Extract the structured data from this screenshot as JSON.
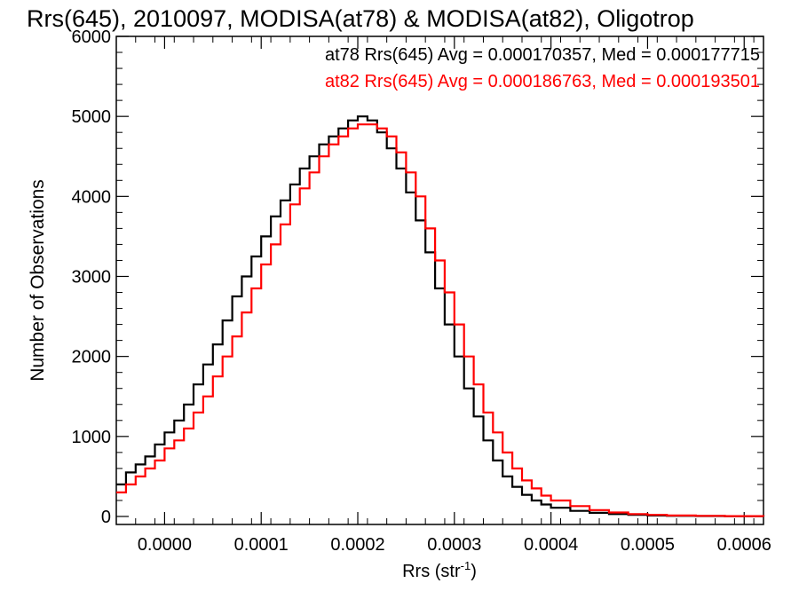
{
  "chart_data": {
    "type": "line",
    "title": "Rrs(645), 2010097, MODISA(at78) & MODISA(at82), Oligotrop",
    "xlabel": "Rrs (str",
    "xlabel_exponent": "-1",
    "xlabel_close": ")",
    "ylabel": "Number of Observations",
    "xlim": [
      -5e-05,
      0.00062
    ],
    "ylim": [
      -100,
      6000
    ],
    "x_tick_labels": [
      "0.0000",
      "0.0001",
      "0.0002",
      "0.0003",
      "0.0004",
      "0.0005",
      "0.0006"
    ],
    "x_tick_values": [
      0,
      0.0001,
      0.0002,
      0.0003,
      0.0004,
      0.0005,
      0.0006
    ],
    "y_tick_labels": [
      "0",
      "1000",
      "2000",
      "3000",
      "4000",
      "5000",
      "6000"
    ],
    "y_tick_values": [
      0,
      1000,
      2000,
      3000,
      4000,
      5000,
      6000
    ],
    "grid": false,
    "legend_position": "top-right",
    "series": [
      {
        "name": "at78 Rrs(645) Avg = 0.000170357, Med = 0.000177715",
        "color": "#000000",
        "x": [
          -5e-05,
          -4e-05,
          -3e-05,
          -2e-05,
          -1e-05,
          0.0,
          1e-05,
          2e-05,
          3e-05,
          4e-05,
          5e-05,
          6e-05,
          7e-05,
          8e-05,
          9e-05,
          0.0001,
          0.00011,
          0.00012,
          0.00013,
          0.00014,
          0.00015,
          0.00016,
          0.00017,
          0.00018,
          0.00019,
          0.0002,
          0.00021,
          0.00022,
          0.00023,
          0.00024,
          0.00025,
          0.00026,
          0.00027,
          0.00028,
          0.00029,
          0.0003,
          0.00031,
          0.00032,
          0.00033,
          0.00034,
          0.00035,
          0.00036,
          0.00037,
          0.00038,
          0.00039,
          0.0004,
          0.00042,
          0.00044,
          0.00046,
          0.00048,
          0.0005,
          0.00052,
          0.00055,
          0.00058,
          0.00062
        ],
        "y": [
          400,
          550,
          650,
          750,
          900,
          1050,
          1200,
          1400,
          1650,
          1900,
          2150,
          2450,
          2750,
          3000,
          3250,
          3500,
          3750,
          3950,
          4150,
          4350,
          4500,
          4650,
          4750,
          4850,
          4950,
          5000,
          4950,
          4800,
          4600,
          4350,
          4050,
          3700,
          3300,
          2850,
          2400,
          2000,
          1600,
          1250,
          950,
          700,
          500,
          370,
          270,
          200,
          150,
          110,
          70,
          45,
          30,
          20,
          12,
          8,
          5,
          3,
          0
        ]
      },
      {
        "name": "at82 Rrs(645) Avg = 0.000186763, Med = 0.000193501",
        "color": "#ff0000",
        "x": [
          -5e-05,
          -4e-05,
          -3e-05,
          -2e-05,
          -1e-05,
          0.0,
          1e-05,
          2e-05,
          3e-05,
          4e-05,
          5e-05,
          6e-05,
          7e-05,
          8e-05,
          9e-05,
          0.0001,
          0.00011,
          0.00012,
          0.00013,
          0.00014,
          0.00015,
          0.00016,
          0.00017,
          0.00018,
          0.00019,
          0.0002,
          0.00021,
          0.00022,
          0.00023,
          0.00024,
          0.00025,
          0.00026,
          0.00027,
          0.00028,
          0.00029,
          0.0003,
          0.00031,
          0.00032,
          0.00033,
          0.00034,
          0.00035,
          0.00036,
          0.00037,
          0.00038,
          0.00039,
          0.0004,
          0.00042,
          0.00044,
          0.00046,
          0.00048,
          0.0005,
          0.00052,
          0.00055,
          0.00058,
          0.00062
        ],
        "y": [
          300,
          400,
          500,
          600,
          700,
          850,
          950,
          1100,
          1300,
          1500,
          1750,
          2000,
          2250,
          2550,
          2850,
          3150,
          3400,
          3650,
          3900,
          4100,
          4300,
          4500,
          4650,
          4750,
          4850,
          4900,
          4900,
          4850,
          4750,
          4550,
          4300,
          4000,
          3600,
          3200,
          2800,
          2400,
          2000,
          1650,
          1300,
          1050,
          800,
          600,
          450,
          350,
          260,
          200,
          130,
          80,
          50,
          30,
          20,
          12,
          8,
          4,
          0
        ]
      }
    ]
  }
}
